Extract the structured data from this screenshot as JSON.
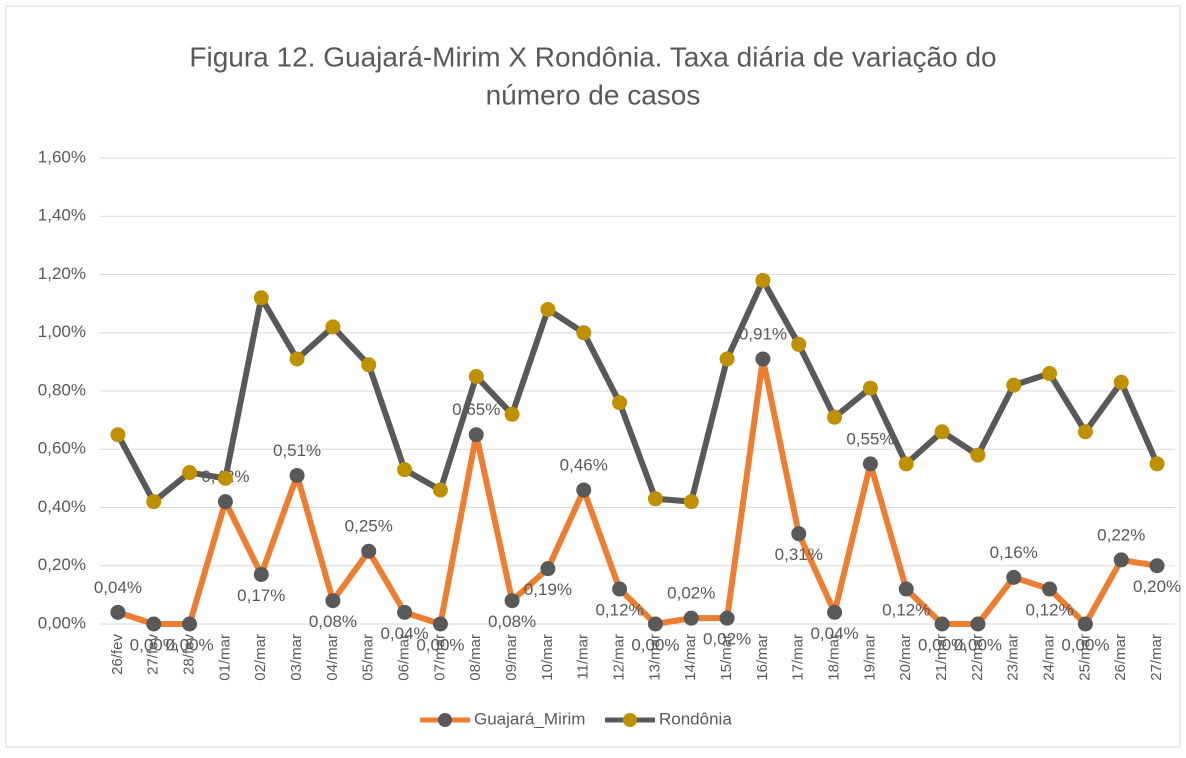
{
  "chart_data": {
    "type": "line",
    "title": "Figura 12. Guajará-Mirim X Rondônia. Taxa diária de variação do",
    "title_line2": "número de casos",
    "categories": [
      "26/fev",
      "27/fev",
      "28/fev",
      "01/mar",
      "02/mar",
      "03/mar",
      "04/mar",
      "05/mar",
      "06/mar",
      "07/mar",
      "08/mar",
      "09/mar",
      "10/mar",
      "11/mar",
      "12/mar",
      "13/mar",
      "14/mar",
      "15/mar",
      "16/mar",
      "17/mar",
      "18/mar",
      "19/mar",
      "20/mar",
      "21/mar",
      "22/mar",
      "23/mar",
      "24/mar",
      "25/mar",
      "26/mar",
      "27/mar"
    ],
    "series": [
      {
        "name": "Guajará_Mirim",
        "color": "#ed7d31",
        "marker_color": "#595959",
        "values": [
          0.04,
          0,
          0,
          0.42,
          0.17,
          0.51,
          0.08,
          0.25,
          0.04,
          0,
          0.65,
          0.08,
          0.19,
          0.46,
          0.12,
          0,
          0.02,
          0.02,
          0.91,
          0.31,
          0.04,
          0.55,
          0.12,
          0,
          0,
          0.16,
          0.12,
          0,
          0.22,
          0.2
        ],
        "value_labels": [
          "0,04%",
          "0,00%",
          "0,00%",
          "0,42%",
          "0,17%",
          "0,51%",
          "0,08%",
          "0,25%",
          "0,04%",
          "0,00%",
          "0,65%",
          "0,08%",
          "0,19%",
          "0,46%",
          "0,12%",
          "0,00%",
          "0,02%",
          "0,02%",
          "0,91%",
          "0,31%",
          "0,04%",
          "0,55%",
          "0,12%",
          "0,00%",
          "0,00%",
          "0,16%",
          "0,12%",
          "0,00%",
          "0,22%",
          "0,20%"
        ]
      },
      {
        "name": "Rondônia",
        "color": "#595959",
        "marker_color": "#bf9000",
        "values": [
          0.65,
          0.42,
          0.52,
          0.5,
          1.12,
          0.91,
          1.02,
          0.89,
          0.53,
          0.46,
          0.85,
          0.72,
          1.08,
          1.0,
          0.76,
          0.43,
          0.42,
          0.91,
          1.18,
          0.96,
          0.71,
          0.81,
          0.55,
          0.66,
          0.58,
          0.82,
          0.86,
          0.66,
          0.83,
          0.55
        ]
      }
    ],
    "ylim": [
      0,
      1.6
    ],
    "yticks": [
      {
        "value": 0,
        "label": "0,00%"
      },
      {
        "value": 0.2,
        "label": "0,20%"
      },
      {
        "value": 0.4,
        "label": "0,40%"
      },
      {
        "value": 0.6,
        "label": "0,60%"
      },
      {
        "value": 0.8,
        "label": "0,80%"
      },
      {
        "value": 1.0,
        "label": "1,00%"
      },
      {
        "value": 1.2,
        "label": "1,20%"
      },
      {
        "value": 1.4,
        "label": "1,40%"
      },
      {
        "value": 1.6,
        "label": "1,60%"
      }
    ],
    "grid": true,
    "legend": "bottom"
  }
}
